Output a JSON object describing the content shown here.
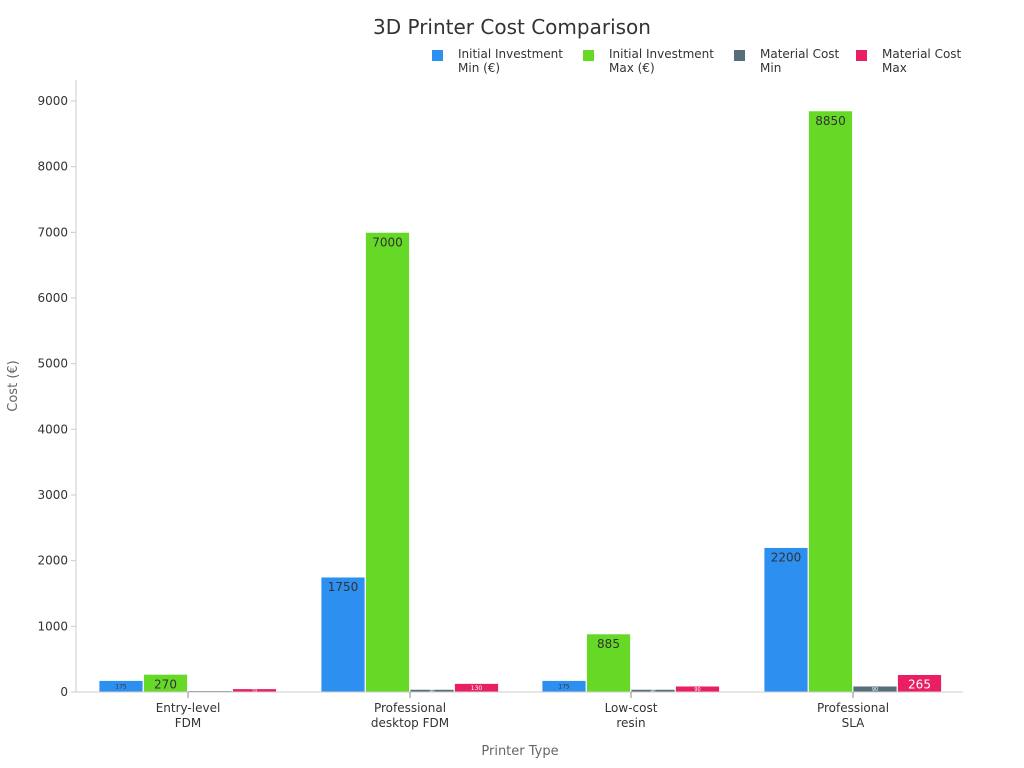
{
  "chart_data": {
    "type": "bar",
    "title": "3D Printer Cost Comparison",
    "xlabel": "Printer Type",
    "ylabel": "Cost (€)",
    "ylim": [
      0,
      9000
    ],
    "yticks": [
      0,
      1000,
      2000,
      3000,
      4000,
      5000,
      6000,
      7000,
      8000,
      9000
    ],
    "grid": false,
    "legend_position": "top-right",
    "categories": [
      [
        "Entry-level",
        "FDM"
      ],
      [
        "Professional",
        "desktop FDM"
      ],
      [
        "Low-cost",
        "resin"
      ],
      [
        "Professional",
        "SLA"
      ]
    ],
    "series": [
      {
        "name": [
          "Initial Investment",
          "Min (€)"
        ],
        "color": "#2d8ff0",
        "label_color": "#333333",
        "values": [
          175,
          1750,
          175,
          2200
        ]
      },
      {
        "name": [
          "Initial Investment",
          "Max (€)"
        ],
        "color": "#66d926",
        "label_color": "#333333",
        "values": [
          270,
          7000,
          885,
          8850
        ]
      },
      {
        "name": [
          "Material Cost",
          "Min"
        ],
        "color": "#546e7a",
        "label_color": "#ffffff",
        "values": [
          20,
          40,
          40,
          90
        ]
      },
      {
        "name": [
          "Material Cost",
          "Max"
        ],
        "color": "#e91e63",
        "label_color": "#ffffff",
        "values": [
          50,
          130,
          90,
          265
        ]
      }
    ]
  }
}
